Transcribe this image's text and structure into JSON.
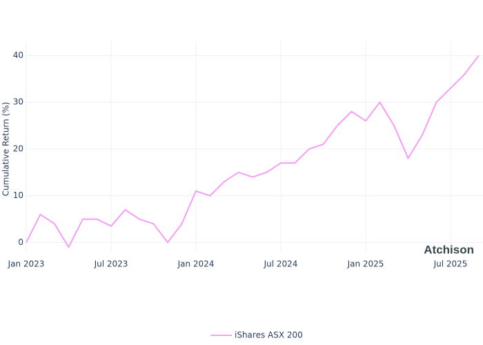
{
  "chart_data": {
    "type": "line",
    "y_label": "Cumulative Return (%)",
    "watermark": "Atchison",
    "x": [
      "2023-01",
      "2023-02",
      "2023-03",
      "2023-04",
      "2023-05",
      "2023-06",
      "2023-07",
      "2023-08",
      "2023-09",
      "2023-10",
      "2023-11",
      "2023-12",
      "2024-01",
      "2024-02",
      "2024-03",
      "2024-04",
      "2024-05",
      "2024-06",
      "2024-07",
      "2024-08",
      "2024-09",
      "2024-10",
      "2024-11",
      "2024-12",
      "2025-01",
      "2025-02",
      "2025-03",
      "2025-04",
      "2025-05",
      "2025-06",
      "2025-07",
      "2025-08",
      "2025-09"
    ],
    "series": [
      {
        "name": "iShares ASX 200",
        "color": "#f79cf7",
        "values": [
          0,
          6,
          4,
          -1,
          5,
          5,
          3.5,
          7,
          5,
          4,
          0,
          4,
          11,
          10,
          13,
          15,
          14,
          15,
          17,
          17,
          20,
          21,
          25,
          28,
          26,
          30,
          25,
          18,
          23,
          30,
          33,
          36,
          40
        ]
      }
    ],
    "xlim": [
      "2023-01",
      "2025-09"
    ],
    "xticks": [
      {
        "value": "2023-01",
        "label": "Jan 2023"
      },
      {
        "value": "2023-07",
        "label": "Jul 2023"
      },
      {
        "value": "2024-01",
        "label": "Jan 2024"
      },
      {
        "value": "2024-07",
        "label": "Jul 2024"
      },
      {
        "value": "2025-01",
        "label": "Jan 2025"
      },
      {
        "value": "2025-07",
        "label": "Jul 2025"
      }
    ],
    "ylim": [
      -2,
      43
    ],
    "yticks": [
      0,
      10,
      20,
      30,
      40
    ],
    "grid": true,
    "legend": "bottom"
  }
}
